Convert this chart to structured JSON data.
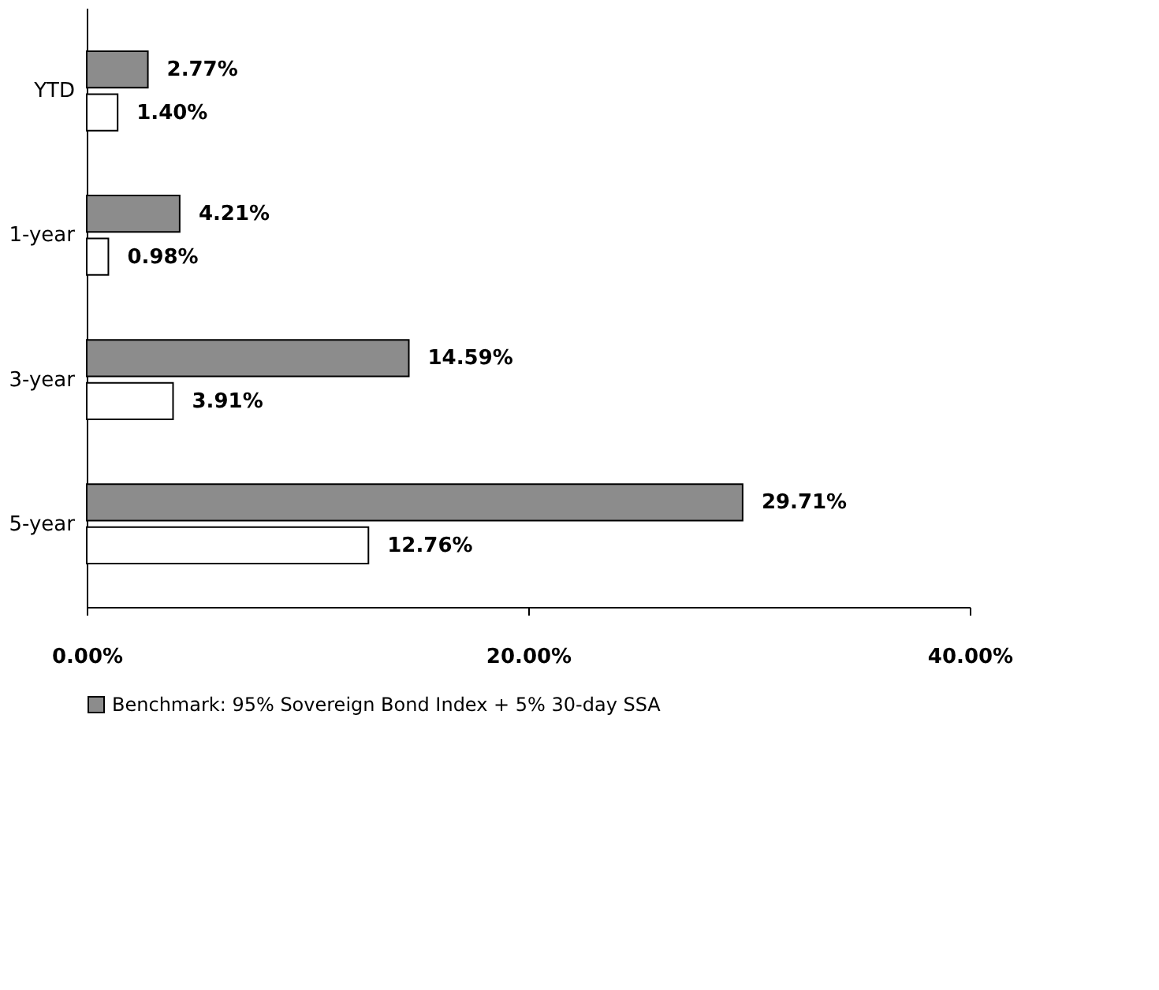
{
  "chart_data": {
    "type": "bar",
    "orientation": "horizontal",
    "categories": [
      "YTD",
      "1-year",
      "3-year",
      "5-year"
    ],
    "series": [
      {
        "name": "Benchmark: 95% Sovereign Bond Index + 5% 30-day SSA",
        "color": "#8c8c8c",
        "values": [
          2.77,
          4.21,
          14.59,
          29.71
        ],
        "value_labels": [
          "2.77%",
          "4.21%",
          "14.59%",
          "29.71%"
        ]
      },
      {
        "color": "#ffffff",
        "values": [
          1.4,
          0.98,
          3.91,
          12.76
        ],
        "value_labels": [
          "1.40%",
          "0.98%",
          "3.91%",
          "12.76%"
        ]
      }
    ],
    "xlim": [
      0,
      40
    ],
    "xticks": [
      {
        "value": 0,
        "label": "0.00%"
      },
      {
        "value": 20,
        "label": "20.00%"
      },
      {
        "value": 40,
        "label": "40.00%"
      }
    ],
    "grid": false,
    "legend": "bottom"
  }
}
